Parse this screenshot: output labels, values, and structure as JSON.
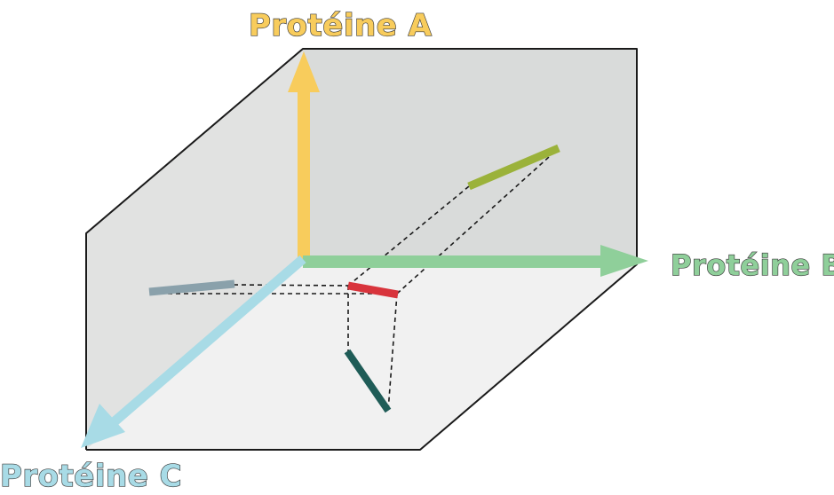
{
  "axes": {
    "a": {
      "label": "Protéine A",
      "color": "#f8cc5c"
    },
    "b": {
      "label": "Protéine B",
      "color": "#8fcf9a"
    },
    "c": {
      "label": "Protéine C",
      "color": "#a8dbe6"
    }
  },
  "segments": {
    "main": {
      "color": "#d8343c"
    },
    "projection_ab": {
      "color": "#9bb23a"
    },
    "projection_ac": {
      "color": "#8aa1ab"
    },
    "projection_bc": {
      "color": "#1f5c57"
    }
  },
  "planes": {
    "back_wall": "#d9dbda",
    "left_wall": "#e1e2e1",
    "floor": "#f1f1f1"
  }
}
